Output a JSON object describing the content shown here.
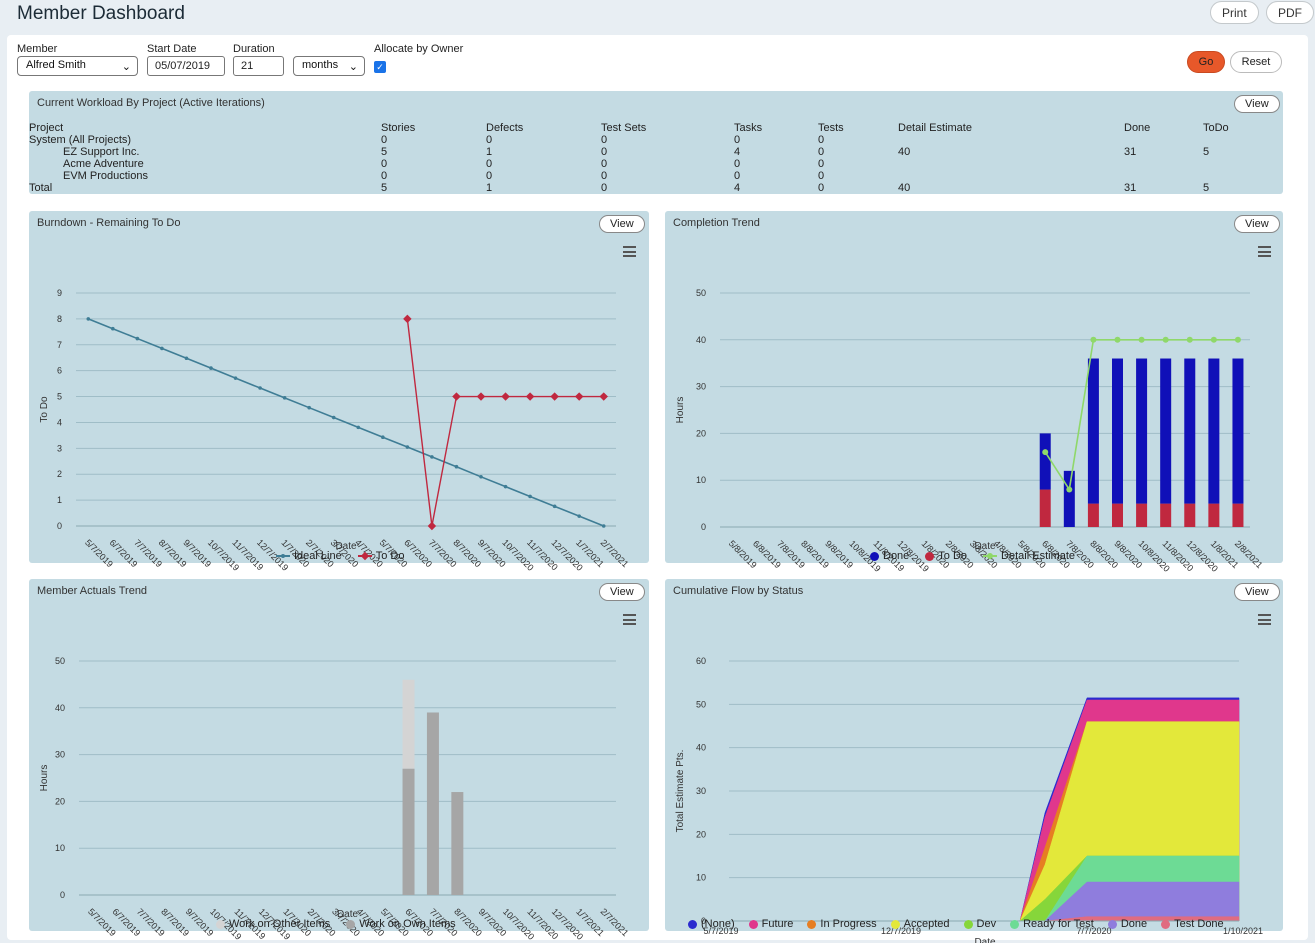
{
  "header": {
    "title": "Member Dashboard",
    "print_label": "Print",
    "pdf_label": "PDF"
  },
  "filters": {
    "member_label": "Member",
    "member_value": "Alfred Smith",
    "start_label": "Start Date",
    "start_value": "05/07/2019",
    "duration_label": "Duration",
    "duration_value": "21",
    "unit_value": "months",
    "allocate_label": "Allocate by Owner",
    "allocate_checked": true,
    "go_label": "Go",
    "reset_label": "Reset"
  },
  "workload": {
    "title": "Current Workload By Project (Active Iterations)",
    "view_label": "View",
    "headers": [
      "Project",
      "Stories",
      "Defects",
      "Test Sets",
      "Tasks",
      "Tests",
      "Detail Estimate",
      "Done",
      "ToDo"
    ],
    "rows": [
      [
        "System (All Projects)",
        "0",
        "0",
        "0",
        "0",
        "0",
        "",
        "",
        ""
      ],
      [
        "EZ Support Inc.",
        "5",
        "1",
        "0",
        "4",
        "0",
        "40",
        "31",
        "5"
      ],
      [
        "Acme Adventure",
        "0",
        "0",
        "0",
        "0",
        "0",
        "",
        "",
        ""
      ],
      [
        "EVM Productions",
        "0",
        "0",
        "0",
        "0",
        "0",
        "",
        "",
        ""
      ],
      [
        "Total",
        "5",
        "1",
        "0",
        "4",
        "0",
        "40",
        "31",
        "5"
      ]
    ]
  },
  "burndown": {
    "title": "Burndown - Remaining To Do",
    "view_label": "View",
    "menu_icon": "hamburger-icon"
  },
  "completion": {
    "title": "Completion Trend",
    "view_label": "View",
    "menu_icon": "hamburger-icon"
  },
  "actuals": {
    "title": "Member Actuals Trend",
    "view_label": "View",
    "menu_icon": "hamburger-icon"
  },
  "cumflow": {
    "title": "Cumulative Flow by Status",
    "view_label": "View",
    "menu_icon": "hamburger-icon"
  },
  "chart_data": [
    {
      "id": "burndown",
      "type": "line",
      "xlabel": "Date",
      "ylabel": "To Do",
      "ylim": [
        0,
        9
      ],
      "yticks": [
        0,
        1,
        2,
        3,
        4,
        5,
        6,
        7,
        8,
        9
      ],
      "grid": true,
      "legend": "bottom",
      "x": [
        "5/7/2019",
        "6/7/2019",
        "7/7/2019",
        "8/7/2019",
        "9/7/2019",
        "10/7/2019",
        "11/7/2019",
        "12/7/2019",
        "1/7/2020",
        "2/7/2020",
        "3/7/2020",
        "4/7/2020",
        "5/7/2020",
        "6/7/2020",
        "7/7/2020",
        "8/7/2020",
        "9/7/2020",
        "10/7/2020",
        "11/7/2020",
        "12/7/2020",
        "1/7/2021",
        "2/7/2021"
      ],
      "series": [
        {
          "name": "Ideal Line",
          "color": "#3f7d95",
          "marker": "circle",
          "values": [
            8,
            7.62,
            7.24,
            6.86,
            6.48,
            6.1,
            5.71,
            5.33,
            4.95,
            4.57,
            4.19,
            3.81,
            3.43,
            3.05,
            2.67,
            2.29,
            1.9,
            1.52,
            1.14,
            0.76,
            0.38,
            0
          ]
        },
        {
          "name": "To Do",
          "color": "#c0283f",
          "marker": "diamond",
          "values": [
            null,
            null,
            null,
            null,
            null,
            null,
            null,
            null,
            null,
            null,
            null,
            null,
            null,
            8,
            0,
            5,
            5,
            5,
            5,
            5,
            5,
            5
          ]
        }
      ]
    },
    {
      "id": "completion",
      "type": "bar",
      "xlabel": "Date",
      "ylabel": "Hours",
      "ylim": [
        0,
        50
      ],
      "yticks": [
        0,
        10,
        20,
        30,
        40,
        50
      ],
      "grid": true,
      "legend": "bottom",
      "stacked": true,
      "categories": [
        "5/8/2019",
        "6/8/2019",
        "7/8/2019",
        "8/8/2019",
        "9/8/2019",
        "10/8/2019",
        "11/8/2019",
        "12/8/2019",
        "1/8/2020",
        "2/8/2020",
        "3/8/2020",
        "4/8/2020",
        "5/8/2020",
        "6/8/2020",
        "7/8/2020",
        "8/8/2020",
        "9/8/2020",
        "10/8/2020",
        "11/8/2020",
        "12/8/2020",
        "1/8/2021",
        "2/8/2021"
      ],
      "series": [
        {
          "name": "Done",
          "color": "#1010b8",
          "values": [
            0,
            0,
            0,
            0,
            0,
            0,
            0,
            0,
            0,
            0,
            0,
            0,
            0,
            12,
            12,
            31,
            31,
            31,
            31,
            31,
            31,
            31
          ]
        },
        {
          "name": "To Do",
          "color": "#c0283f",
          "values": [
            0,
            0,
            0,
            0,
            0,
            0,
            0,
            0,
            0,
            0,
            0,
            0,
            0,
            8,
            0,
            5,
            5,
            5,
            5,
            5,
            5,
            5
          ]
        },
        {
          "name": "Detail Estimate",
          "color": "#8fd86a",
          "type": "line",
          "values": [
            null,
            null,
            null,
            null,
            null,
            null,
            null,
            null,
            null,
            null,
            null,
            null,
            null,
            16,
            8,
            40,
            40,
            40,
            40,
            40,
            40,
            40
          ]
        }
      ]
    },
    {
      "id": "actuals",
      "type": "bar",
      "xlabel": "Date",
      "ylabel": "Hours",
      "ylim": [
        0,
        50
      ],
      "yticks": [
        0,
        10,
        20,
        30,
        40,
        50
      ],
      "grid": true,
      "legend": "bottom",
      "stacked": true,
      "categories": [
        "5/7/2019",
        "6/7/2019",
        "7/7/2019",
        "8/7/2019",
        "9/7/2019",
        "10/7/2019",
        "11/7/2019",
        "12/7/2019",
        "1/7/2020",
        "2/7/2020",
        "3/7/2020",
        "4/7/2020",
        "5/7/2020",
        "6/7/2020",
        "7/7/2020",
        "8/7/2020",
        "9/7/2020",
        "10/7/2020",
        "11/7/2020",
        "12/7/2020",
        "1/7/2021",
        "2/7/2021"
      ],
      "series": [
        {
          "name": "Work on Own Items",
          "color": "#a6a6a6",
          "values": [
            0,
            0,
            0,
            0,
            0,
            0,
            0,
            0,
            0,
            0,
            0,
            0,
            0,
            27,
            39,
            22,
            0,
            0,
            0,
            0,
            0,
            0
          ]
        },
        {
          "name": "Work on Other Items",
          "color": "#d4d4d4",
          "values": [
            0,
            0,
            0,
            0,
            0,
            0,
            0,
            0,
            0,
            0,
            0,
            0,
            0,
            19,
            0,
            0,
            0,
            0,
            0,
            0,
            0,
            0
          ]
        }
      ]
    },
    {
      "id": "cumflow",
      "type": "area",
      "xlabel": "Date",
      "ylabel": "Total Estimate Pts.",
      "ylim": [
        0,
        60
      ],
      "yticks": [
        0,
        10,
        20,
        30,
        40,
        50,
        60
      ],
      "grid": true,
      "legend": "bottom",
      "xtick_labels": [
        "5/7/2019",
        "12/7/2019",
        "7/7/2020",
        "1/10/2021"
      ],
      "series": [
        {
          "name": "(None)",
          "color": "#2b2bcf"
        },
        {
          "name": "Future",
          "color": "#e0378c"
        },
        {
          "name": "In Progress",
          "color": "#e67e22"
        },
        {
          "name": "Accepted",
          "color": "#e3e83a"
        },
        {
          "name": "Dev",
          "color": "#86d63a"
        },
        {
          "name": "Ready for Test",
          "color": "#6ddb95"
        },
        {
          "name": "Done",
          "color": "#8f7ddd"
        },
        {
          "name": "Test Done",
          "color": "#e06c80"
        }
      ],
      "stack_top_values": [
        {
          "date": "5/7/2019",
          "Test Done": 0,
          "Done": 0,
          "Ready for Test": 0,
          "Dev": 0,
          "Accepted": 0,
          "In Progress": 0,
          "Future": 0,
          "(None)": 0
        },
        {
          "date": "~6/2020",
          "Test Done": 0,
          "Done": 0,
          "Ready for Test": 0,
          "Dev": 0,
          "Accepted": 0,
          "In Progress": 0,
          "Future": 0,
          "(None)": 0
        },
        {
          "date": "~6/20/2020",
          "Test Done": 0,
          "Done": 0,
          "Ready for Test": 0,
          "Dev": 5,
          "Accepted": 13,
          "In Progress": 17,
          "Future": 24,
          "(None)": 25
        },
        {
          "date": "7/7/2020",
          "Test Done": 1,
          "Done": 9,
          "Ready for Test": 15,
          "Dev": 15,
          "Accepted": 46,
          "In Progress": 46,
          "Future": 51,
          "(None)": 51.5
        },
        {
          "date": "1/10/2021",
          "Test Done": 1,
          "Done": 9,
          "Ready for Test": 15,
          "Dev": 15,
          "Accepted": 46,
          "In Progress": 46,
          "Future": 51,
          "(None)": 51.5
        }
      ]
    }
  ]
}
